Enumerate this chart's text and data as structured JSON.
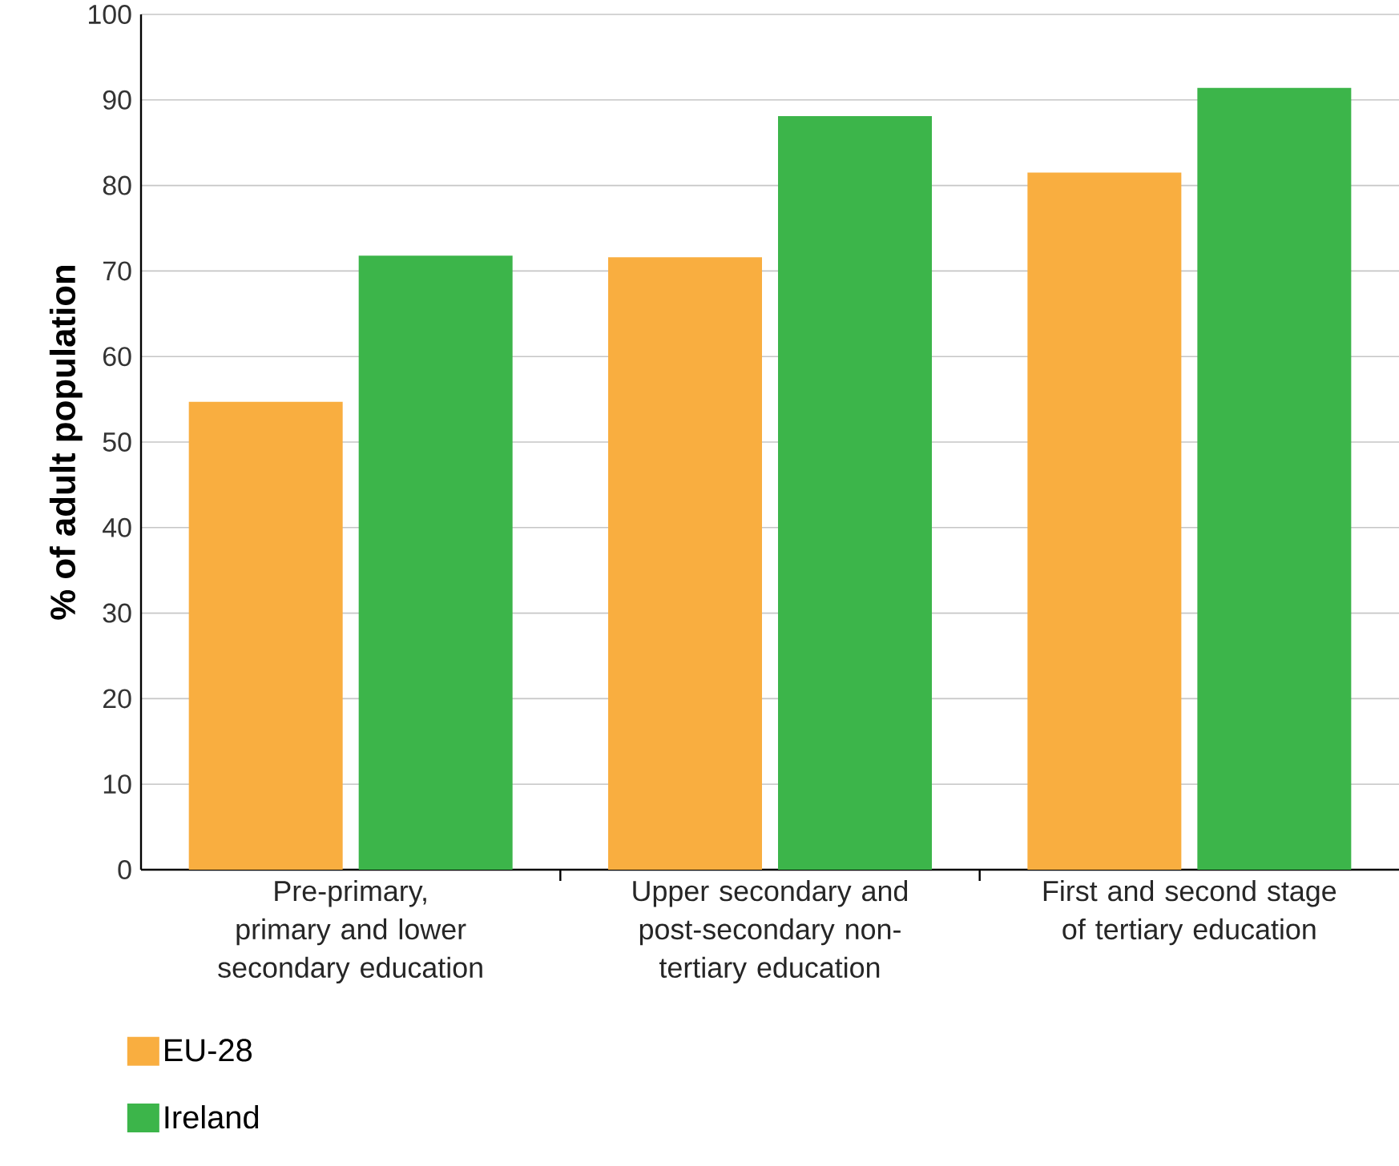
{
  "chart_data": {
    "type": "bar",
    "ylabel": "% of adult population",
    "categories": [
      "Pre-primary, primary and lower secondary education",
      "Upper secondary and post-secondary non-tertiary education",
      "First and second stage of tertiary education"
    ],
    "series": [
      {
        "name": "EU-28",
        "color": "#f9ae40",
        "values": [
          54.7,
          71.6,
          81.5
        ]
      },
      {
        "name": "Ireland",
        "color": "#3cb54a",
        "values": [
          71.8,
          88.1,
          91.4
        ]
      }
    ],
    "ylim": [
      0,
      100
    ],
    "yticks": [
      0,
      10,
      20,
      30,
      40,
      50,
      60,
      70,
      80,
      90,
      100
    ],
    "grid": "y",
    "legend": "bottom left"
  }
}
